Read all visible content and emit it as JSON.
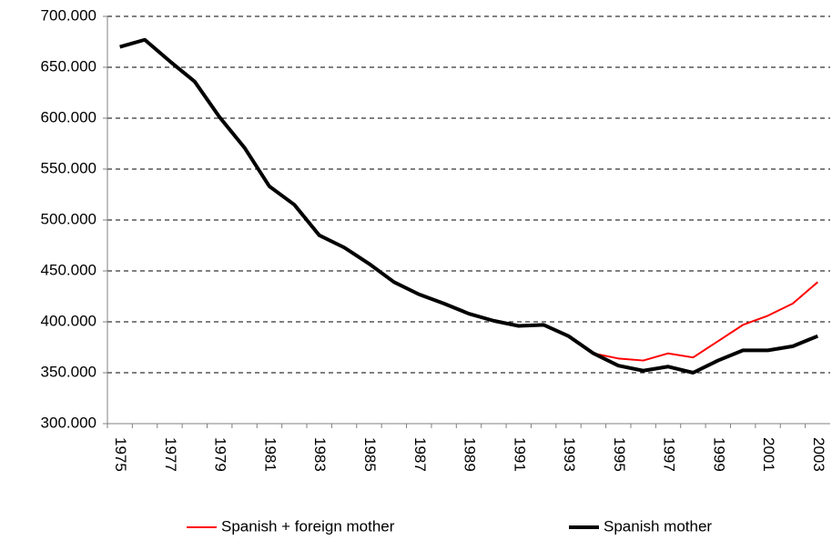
{
  "chart_data": {
    "type": "line",
    "categories": [
      "1975",
      null,
      "1977",
      null,
      "1979",
      null,
      "1981",
      null,
      "1983",
      null,
      "1985",
      null,
      "1987",
      null,
      "1989",
      null,
      "1991",
      null,
      "1993",
      null,
      "1995",
      null,
      "1997",
      null,
      "1999",
      null,
      "2001",
      null,
      "2003"
    ],
    "series": [
      {
        "name": "Spanish + foreign mother",
        "color": "#ff0000",
        "values": [
          670000,
          677000,
          656000,
          636000,
          601000,
          571000,
          533000,
          515000,
          485000,
          473000,
          457000,
          439000,
          427000,
          418000,
          408000,
          401000,
          396000,
          397000,
          386000,
          369000,
          364000,
          362000,
          369000,
          365000,
          381000,
          397000,
          406000,
          418000,
          439000
        ]
      },
      {
        "name": "Spanish mother",
        "color": "#000000",
        "values": [
          670000,
          677000,
          656000,
          636000,
          601000,
          571000,
          533000,
          515000,
          485000,
          473000,
          457000,
          439000,
          427000,
          418000,
          408000,
          401000,
          396000,
          397000,
          386000,
          369000,
          357000,
          352000,
          356000,
          350000,
          362000,
          372000,
          372000,
          376000,
          386000
        ]
      }
    ],
    "ylim": [
      300000,
      700000
    ],
    "yticks": [
      {
        "value": 300000,
        "label": "300.000"
      },
      {
        "value": 350000,
        "label": "350.000"
      },
      {
        "value": 400000,
        "label": "400.000"
      },
      {
        "value": 450000,
        "label": "450.000"
      },
      {
        "value": 500000,
        "label": "500.000"
      },
      {
        "value": 550000,
        "label": "550.000"
      },
      {
        "value": 600000,
        "label": "600.000"
      },
      {
        "value": 650000,
        "label": "650.000"
      },
      {
        "value": 700000,
        "label": "700.000"
      }
    ],
    "grid": true,
    "legend": "bottom"
  }
}
